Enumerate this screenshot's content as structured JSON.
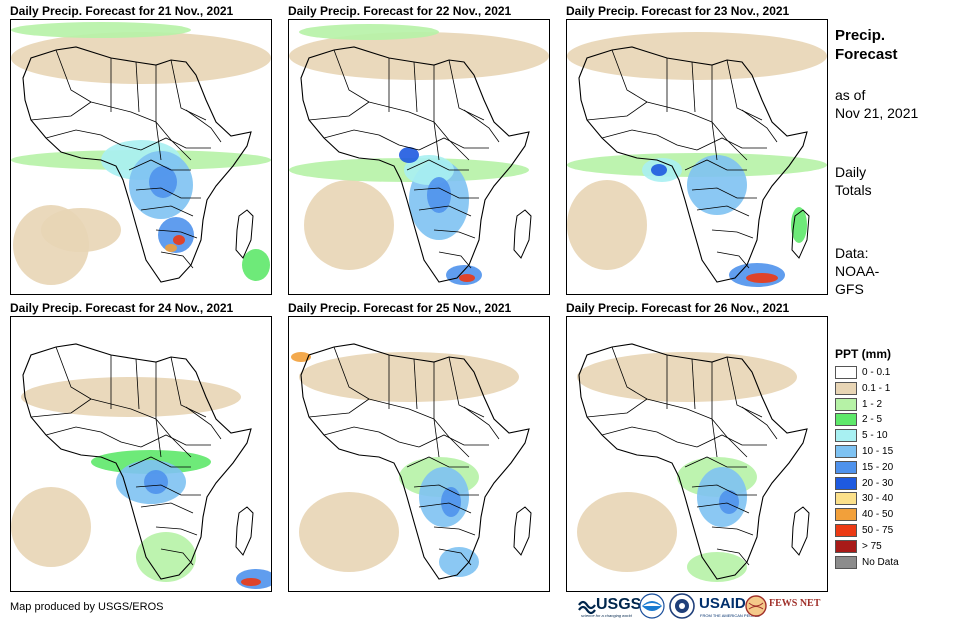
{
  "panels": [
    {
      "title": "Daily Precip. Forecast for 21 Nov., 2021"
    },
    {
      "title": "Daily Precip. Forecast for 22 Nov., 2021"
    },
    {
      "title": "Daily Precip. Forecast for 23 Nov., 2021"
    },
    {
      "title": "Daily Precip. Forecast for 24 Nov., 2021"
    },
    {
      "title": "Daily Precip. Forecast for 25 Nov., 2021"
    },
    {
      "title": "Daily Precip. Forecast for 26 Nov., 2021"
    }
  ],
  "side": {
    "title_line1": "Precip.",
    "title_line2": "Forecast",
    "asof_line1": "as of",
    "asof_line2": "Nov 21, 2021",
    "totals_line1": "Daily",
    "totals_line2": "Totals",
    "data_line1": "Data:",
    "data_line2": "NOAA-",
    "data_line3": "GFS"
  },
  "legend": {
    "title": "PPT (mm)",
    "items": [
      {
        "label": "0 - 0.1",
        "color": "#ffffff"
      },
      {
        "label": "0.1 - 1",
        "color": "#e8d5b5"
      },
      {
        "label": "1 - 2",
        "color": "#b6f2a6"
      },
      {
        "label": "2 - 5",
        "color": "#5ee86a"
      },
      {
        "label": "5 - 10",
        "color": "#a8f0f2"
      },
      {
        "label": "10 - 15",
        "color": "#7ec2f2"
      },
      {
        "label": "15 - 20",
        "color": "#4f92ec"
      },
      {
        "label": "20 - 30",
        "color": "#1e5ae0"
      },
      {
        "label": "30 - 40",
        "color": "#fbe08a"
      },
      {
        "label": "40 - 50",
        "color": "#f2a03a"
      },
      {
        "label": "50 - 75",
        "color": "#ec3a14"
      },
      {
        "label": "> 75",
        "color": "#a81a18"
      },
      {
        "label": "No Data",
        "color": "#8c8c8c"
      }
    ]
  },
  "credit": "Map produced by USGS/EROS",
  "logos": {
    "usgs": "USGS",
    "usgs_tagline": "science for a changing world",
    "usaid": "USAID",
    "usaid_tagline": "FROM THE AMERICAN PEOPLE",
    "fews": "FEWS NET"
  }
}
